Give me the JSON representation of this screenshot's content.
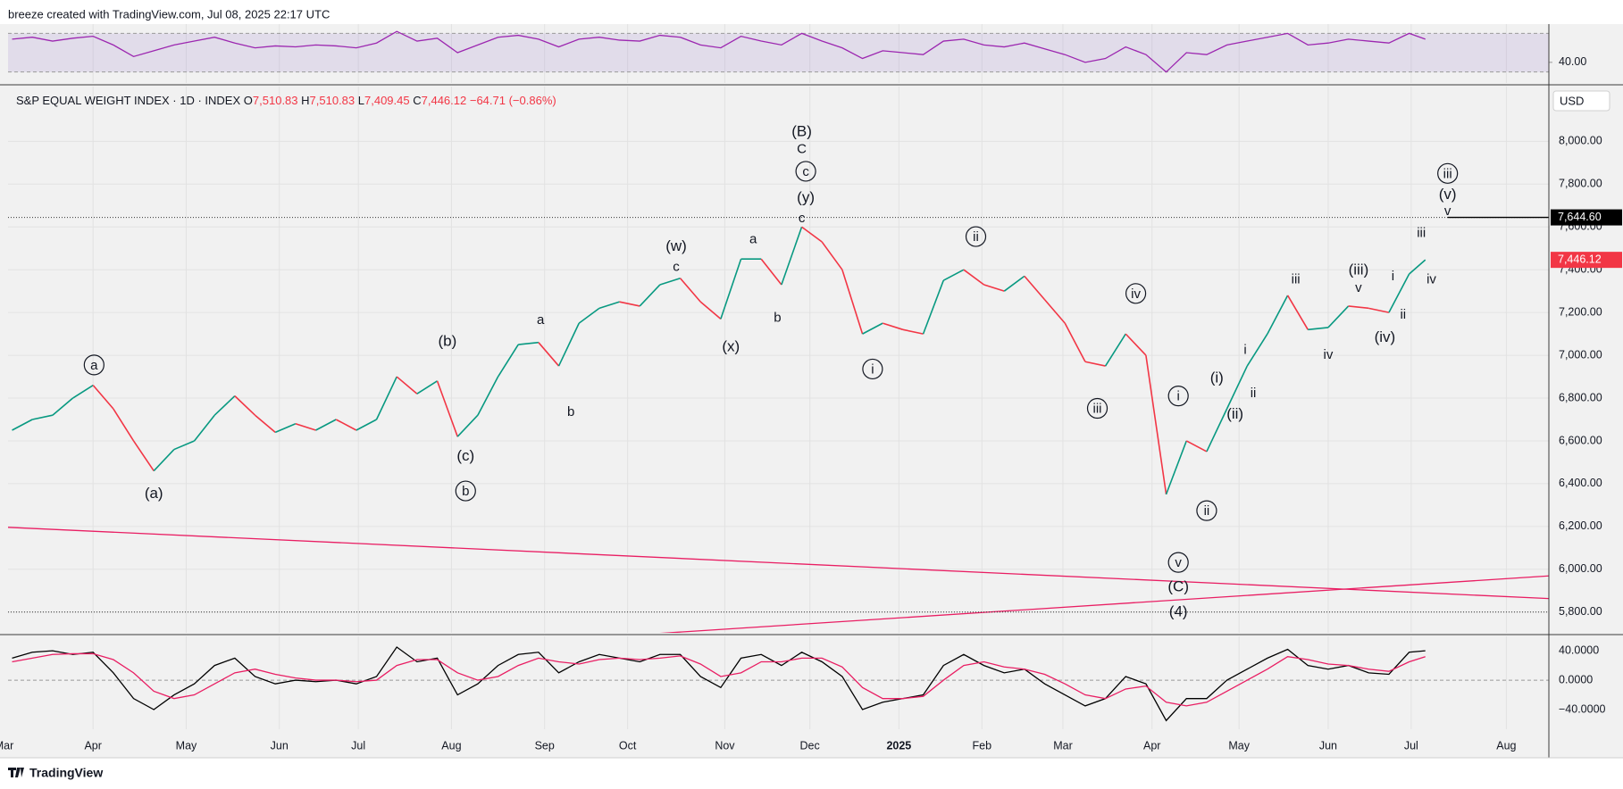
{
  "header": {
    "credit": "breeze created with TradingView.com, Jul 08, 2025 22:17 UTC",
    "footer": "TradingView"
  },
  "chart_data": [
    {
      "type": "line",
      "color": "#9c27b0",
      "band": [
        30,
        70
      ],
      "ylim": [
        18.6,
        79.6
      ],
      "yticks": [
        {
          "value": 40,
          "label": "40.00"
        }
      ],
      "values": [
        64,
        66,
        62,
        65,
        67,
        58,
        46,
        52,
        58,
        62,
        66,
        60,
        55,
        57,
        56,
        58,
        57,
        55,
        60,
        72,
        62,
        65,
        50,
        58,
        66,
        68,
        64,
        56,
        64,
        66,
        63,
        62,
        68,
        66,
        58,
        55,
        67,
        62,
        58,
        70,
        62,
        55,
        44,
        52,
        50,
        48,
        62,
        64,
        58,
        56,
        60,
        54,
        48,
        40,
        44,
        56,
        48,
        30,
        50,
        48,
        58,
        62,
        66,
        70,
        58,
        60,
        64,
        62,
        60,
        70,
        64
      ]
    },
    {
      "type": "price",
      "title": "S&P EQUAL WEIGHT INDEX · 1D · INDEX",
      "ohlc": [
        {
          "key": "O",
          "value": "7,510.83"
        },
        {
          "key": "H",
          "value": "7,510.83"
        },
        {
          "key": "L",
          "value": "7,409.45"
        },
        {
          "key": "C",
          "value": "7,446.12"
        }
      ],
      "change": "−64.71 (−0.86%)",
      "currency": "USD",
      "up_color": "#089981",
      "down_color": "#f23645",
      "grid": true,
      "x": [
        -4,
        -3,
        -2,
        -1,
        0,
        1,
        2,
        3,
        4,
        5,
        6,
        7,
        8,
        9,
        10,
        11,
        12,
        13,
        14,
        15,
        16,
        17,
        18,
        19,
        20,
        21,
        22,
        23,
        24,
        25,
        26,
        27,
        28,
        29,
        30,
        31,
        32,
        33,
        34,
        35,
        36,
        37,
        38,
        39,
        40,
        41,
        42,
        43,
        44,
        45,
        46,
        47,
        48,
        49,
        50,
        51,
        52,
        53,
        54,
        55,
        56,
        57,
        58,
        59,
        60,
        61,
        62,
        63,
        64,
        65,
        65.8
      ],
      "values": [
        6650,
        6700,
        6720,
        6800,
        6860,
        6750,
        6600,
        6460,
        6560,
        6600,
        6720,
        6810,
        6720,
        6640,
        6680,
        6650,
        6700,
        6650,
        6700,
        6900,
        6820,
        6880,
        6620,
        6720,
        6900,
        7050,
        7060,
        6950,
        7150,
        7220,
        7250,
        7230,
        7330,
        7360,
        7250,
        7170,
        7450,
        7450,
        7330,
        7600,
        7530,
        7400,
        7100,
        7150,
        7120,
        7100,
        7350,
        7400,
        7330,
        7300,
        7370,
        7260,
        7150,
        6970,
        6950,
        7100,
        7000,
        6350,
        6600,
        6550,
        6750,
        6950,
        7100,
        7280,
        7120,
        7130,
        7230,
        7220,
        7200,
        7380,
        7446.12
      ],
      "xlim": [
        -4.2,
        71.9
      ],
      "xticks": [
        {
          "value": -4.4,
          "label": "Mar"
        },
        {
          "value": 0,
          "label": "Apr"
        },
        {
          "value": 4.6,
          "label": "May"
        },
        {
          "value": 9.2,
          "label": "Jun"
        },
        {
          "value": 13.1,
          "label": "Jul"
        },
        {
          "value": 17.7,
          "label": "Aug"
        },
        {
          "value": 22.3,
          "label": "Sep"
        },
        {
          "value": 26.4,
          "label": "Oct"
        },
        {
          "value": 31.2,
          "label": "Nov"
        },
        {
          "value": 35.4,
          "label": "Dec"
        },
        {
          "value": 39.8,
          "label": "2025"
        },
        {
          "value": 43.9,
          "label": "Feb"
        },
        {
          "value": 47.9,
          "label": "Mar"
        },
        {
          "value": 52.3,
          "label": "Apr"
        },
        {
          "value": 56.6,
          "label": "May"
        },
        {
          "value": 61.0,
          "label": "Jun"
        },
        {
          "value": 65.1,
          "label": "Jul"
        },
        {
          "value": 69.8,
          "label": "Aug"
        }
      ],
      "ylim": [
        5703,
        8256
      ],
      "yticks": [
        {
          "value": 5800,
          "label": "5,800.00"
        },
        {
          "value": 6000,
          "label": "6,000.00"
        },
        {
          "value": 6200,
          "label": "6,200.00"
        },
        {
          "value": 6400,
          "label": "6,400.00"
        },
        {
          "value": 6600,
          "label": "6,600.00"
        },
        {
          "value": 6800,
          "label": "6,800.00"
        },
        {
          "value": 7000,
          "label": "7,000.00"
        },
        {
          "value": 7200,
          "label": "7,200.00"
        },
        {
          "value": 7400,
          "label": "7,400.00"
        },
        {
          "value": 7600,
          "label": "7,600.00"
        },
        {
          "value": 7800,
          "label": "7,800.00"
        },
        {
          "value": 8000,
          "label": "8,000.00"
        }
      ],
      "last": {
        "value": 7446.12,
        "label": "7,446.12",
        "color": "#f23645"
      },
      "levels": [
        {
          "value": 7644.6,
          "label": "7,644.60",
          "from": 66.9
        },
        {
          "value": 5800
        }
      ],
      "trendlines": [
        {
          "x": [
            -4.2,
            71.9
          ],
          "y": [
            6196,
            5863
          ],
          "color": "#e91e63"
        },
        {
          "x": [
            26.3,
            71.9
          ],
          "y": [
            5690,
            5969
          ],
          "color": "#e91e63"
        }
      ],
      "waves": [
        {
          "text": "(B)",
          "x": 35.0,
          "y": 8048,
          "circled": false
        },
        {
          "text": "C",
          "x": 35.0,
          "y": 7966,
          "circled": false
        },
        {
          "text": "c",
          "x": 35.2,
          "y": 7860,
          "circled": true
        },
        {
          "text": "(y)",
          "x": 35.2,
          "y": 7739,
          "circled": false
        },
        {
          "text": "c",
          "x": 35.0,
          "y": 7642,
          "circled": false
        },
        {
          "text": "(w)",
          "x": 28.8,
          "y": 7511,
          "circled": false
        },
        {
          "text": "c",
          "x": 28.8,
          "y": 7415,
          "circled": false
        },
        {
          "text": "a",
          "x": 32.6,
          "y": 7545,
          "circled": false
        },
        {
          "text": "b",
          "x": 33.8,
          "y": 7177,
          "circled": false
        },
        {
          "text": "(x)",
          "x": 31.5,
          "y": 7041,
          "circled": false
        },
        {
          "text": "a",
          "x": 22.1,
          "y": 7168,
          "circled": false
        },
        {
          "text": "b",
          "x": 23.6,
          "y": 6738,
          "circled": false
        },
        {
          "text": "(b)",
          "x": 17.5,
          "y": 7067,
          "circled": false
        },
        {
          "text": "(c)",
          "x": 18.4,
          "y": 6530,
          "circled": false
        },
        {
          "text": "b",
          "x": 18.4,
          "y": 6366,
          "circled": true
        },
        {
          "text": "a",
          "x": 0.05,
          "y": 6955,
          "circled": true
        },
        {
          "text": "(a)",
          "x": 3.0,
          "y": 6356,
          "circled": false
        },
        {
          "text": "ii",
          "x": 43.6,
          "y": 7555,
          "circled": true
        },
        {
          "text": "i",
          "x": 38.5,
          "y": 6936,
          "circled": true
        },
        {
          "text": "iv",
          "x": 51.5,
          "y": 7289,
          "circled": true
        },
        {
          "text": "iii",
          "x": 49.6,
          "y": 6752,
          "circled": true
        },
        {
          "text": "i",
          "x": 53.6,
          "y": 6810,
          "circled": true
        },
        {
          "text": "ii",
          "x": 55.0,
          "y": 6274,
          "circled": true
        },
        {
          "text": "v",
          "x": 53.6,
          "y": 6032,
          "circled": true
        },
        {
          "text": "(C)",
          "x": 53.6,
          "y": 5920,
          "circled": false
        },
        {
          "text": "(4)",
          "x": 53.6,
          "y": 5804,
          "circled": false
        },
        {
          "text": "(i)",
          "x": 55.5,
          "y": 6897,
          "circled": false
        },
        {
          "text": "(ii)",
          "x": 56.4,
          "y": 6728,
          "circled": false
        },
        {
          "text": "i",
          "x": 56.9,
          "y": 7028,
          "circled": false
        },
        {
          "text": "ii",
          "x": 57.3,
          "y": 6825,
          "circled": false
        },
        {
          "text": "iii",
          "x": 59.4,
          "y": 7357,
          "circled": false
        },
        {
          "text": "iv",
          "x": 61.0,
          "y": 7004,
          "circled": false
        },
        {
          "text": "(iii)",
          "x": 62.5,
          "y": 7400,
          "circled": false
        },
        {
          "text": "v",
          "x": 62.5,
          "y": 7318,
          "circled": false
        },
        {
          "text": "i",
          "x": 64.2,
          "y": 7371,
          "circled": false
        },
        {
          "text": "ii",
          "x": 64.7,
          "y": 7192,
          "circled": false
        },
        {
          "text": "(iv)",
          "x": 63.8,
          "y": 7086,
          "circled": false
        },
        {
          "text": "iii",
          "x": 65.6,
          "y": 7574,
          "circled": false
        },
        {
          "text": "iv",
          "x": 66.1,
          "y": 7357,
          "circled": false
        },
        {
          "text": "iii",
          "x": 66.9,
          "y": 7850,
          "circled": true
        },
        {
          "text": "(v)",
          "x": 66.9,
          "y": 7753,
          "circled": false
        },
        {
          "text": "v",
          "x": 66.9,
          "y": 7676,
          "circled": false
        }
      ]
    },
    {
      "type": "macd",
      "ylim": [
        -66.7,
        59.6
      ],
      "yticks": [
        {
          "value": -40,
          "label": "−40.0000"
        },
        {
          "value": 0,
          "label": "0.0000"
        },
        {
          "value": 40,
          "label": "40.0000"
        }
      ],
      "series": [
        {
          "color": "#000000",
          "values": [
            30,
            38,
            40,
            35,
            38,
            10,
            -25,
            -40,
            -20,
            -5,
            20,
            30,
            5,
            -5,
            0,
            -2,
            0,
            -5,
            5,
            45,
            25,
            30,
            -20,
            -5,
            20,
            35,
            38,
            10,
            25,
            35,
            30,
            25,
            35,
            35,
            5,
            -10,
            30,
            35,
            20,
            38,
            25,
            5,
            -40,
            -30,
            -25,
            -20,
            20,
            35,
            20,
            10,
            15,
            -5,
            -20,
            -35,
            -25,
            5,
            -5,
            -55,
            -25,
            -25,
            0,
            15,
            30,
            42,
            20,
            15,
            20,
            10,
            8,
            38,
            40
          ]
        },
        {
          "color": "#e91e63",
          "values": [
            25,
            30,
            35,
            36,
            36,
            28,
            10,
            -15,
            -25,
            -20,
            -5,
            10,
            15,
            8,
            3,
            0,
            0,
            -2,
            0,
            20,
            28,
            28,
            10,
            0,
            5,
            20,
            30,
            25,
            22,
            28,
            30,
            28,
            30,
            33,
            22,
            5,
            10,
            25,
            25,
            30,
            30,
            18,
            -10,
            -25,
            -25,
            -22,
            0,
            20,
            25,
            18,
            15,
            8,
            -5,
            -20,
            -25,
            -12,
            -8,
            -30,
            -35,
            -30,
            -15,
            0,
            15,
            32,
            28,
            22,
            20,
            15,
            12,
            25,
            32
          ]
        }
      ]
    }
  ]
}
